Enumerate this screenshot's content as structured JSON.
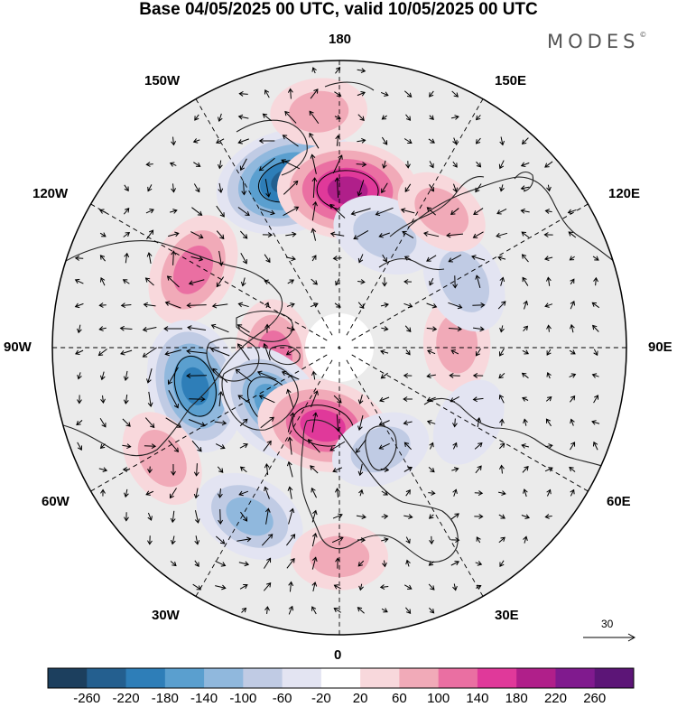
{
  "title": "Base 04/05/2025 00 UTC, valid 10/05/2025 00 UTC",
  "brand": "MODES",
  "brand_mark": "©",
  "longitude_labels": {
    "top": "180",
    "bottom": "0",
    "left": "90W",
    "right": "90E",
    "upper_left_1": "150W",
    "upper_left_2": "120W",
    "upper_right_1": "150E",
    "upper_right_2": "120E",
    "lower_left_1": "60W",
    "lower_left_2": "30W",
    "lower_right_1": "60E",
    "lower_right_2": "30E"
  },
  "vector_reference_label": "30",
  "colorbar": {
    "ticks": [
      "-260",
      "-220",
      "-180",
      "-140",
      "-100",
      "-60",
      "-20",
      "20",
      "60",
      "100",
      "140",
      "180",
      "220",
      "260"
    ],
    "colors": [
      "#1c3f5e",
      "#245f8f",
      "#2e7eb8",
      "#5a9fcf",
      "#90b8dd",
      "#c0cbe4",
      "#e3e4f2",
      "#ffffff",
      "#f8d8dc",
      "#f1aab8",
      "#ea6fa2",
      "#e0399a",
      "#b01f8a",
      "#801a8e",
      "#5c1577"
    ]
  },
  "map_colors": {
    "neutral": "#ebebeb",
    "coast": "#222222",
    "grid": "#000000"
  },
  "anomaly_centers": [
    {
      "lon": -163,
      "lat": 44,
      "value": -220
    },
    {
      "lon": 177,
      "lat": 48,
      "value": 200
    },
    {
      "lon": 158,
      "lat": 57,
      "value": -90
    },
    {
      "lon": -118,
      "lat": 46,
      "value": 120
    },
    {
      "lon": -75,
      "lat": 50,
      "value": -180
    },
    {
      "lon": -83,
      "lat": 72,
      "value": 110
    },
    {
      "lon": -50,
      "lat": 66,
      "value": -160
    },
    {
      "lon": -12,
      "lat": 68,
      "value": 170
    },
    {
      "lon": -58,
      "lat": 36,
      "value": 70
    },
    {
      "lon": -28,
      "lat": 40,
      "value": -110
    },
    {
      "lon": 0,
      "lat": 36,
      "value": 60
    },
    {
      "lon": 22,
      "lat": 60,
      "value": -70
    },
    {
      "lon": 92,
      "lat": 58,
      "value": 60
    },
    {
      "lon": 118,
      "lat": 52,
      "value": -90
    },
    {
      "lon": 143,
      "lat": 45,
      "value": 60
    },
    {
      "lon": -175,
      "lat": 30,
      "value": 60
    },
    {
      "lon": 60,
      "lat": 50,
      "value": -40
    }
  ]
}
